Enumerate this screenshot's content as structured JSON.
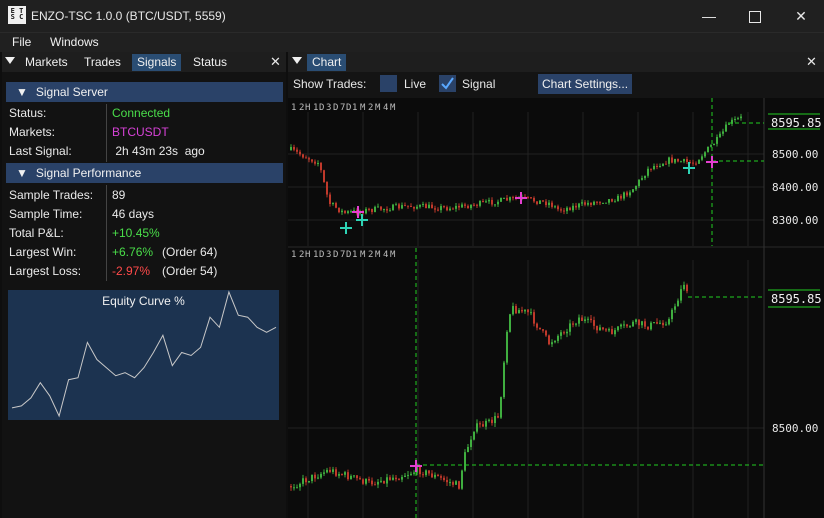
{
  "window": {
    "icon_text": "ETSC",
    "title": "ENZO-TSC 1.0.0 (BTC/USDT, 5559)",
    "minimize": "—",
    "maximize": "☐",
    "close": "✕"
  },
  "menu": [
    "File",
    "Windows"
  ],
  "left_tabs": [
    "Markets",
    "Trades",
    "Signals",
    "Status"
  ],
  "left_active_tab": "Signals",
  "signal_server": {
    "header": "Signal Server",
    "rows": [
      {
        "label": "Status:",
        "value": "Connected",
        "color": "#4ade4a"
      },
      {
        "label": "Markets:",
        "value": "BTCUSDT",
        "color": "#d642d6"
      },
      {
        "label": "Last Signal:",
        "value": " 2h 43m 23s  ago",
        "color": "#eaeaea"
      }
    ]
  },
  "signal_performance": {
    "header": "Signal Performance",
    "rows": [
      {
        "label": "Sample Trades:",
        "value": "89",
        "extra": "",
        "color": "#eaeaea"
      },
      {
        "label": "Sample Time:",
        "value": "46 days",
        "extra": "",
        "color": "#eaeaea"
      },
      {
        "label": "Total P&L:",
        "value": "+10.45%",
        "extra": "",
        "color": "#4ade4a"
      },
      {
        "label": "Largest Win:",
        "value": "+6.76%",
        "extra": "(Order 64)",
        "color": "#4ade4a"
      },
      {
        "label": "Largest Loss:",
        "value": "-2.97%",
        "extra": "(Order 54)",
        "color": "#ff4a4a"
      }
    ]
  },
  "equity_curve": {
    "title": "Equity Curve %",
    "values": [
      2.0,
      2.2,
      3.0,
      4.5,
      3.2,
      1.2,
      4.8,
      5.0,
      8.5,
      6.8,
      6.0,
      5.2,
      5.5,
      5.0,
      6.0,
      7.5,
      9.2,
      6.2,
      7.5,
      7.2,
      8.0,
      11.0,
      10.0,
      13.5,
      11.2,
      11.0,
      10.0,
      9.5,
      10.0
    ]
  },
  "chart_tab": {
    "label": "Chart"
  },
  "chart_toolbar": {
    "show_trades_label": "Show Trades:",
    "live_label": "Live",
    "live_checked": false,
    "signal_label": "Signal",
    "signal_checked": true,
    "settings_button": "Chart Settings..."
  },
  "timeframes": [
    "1",
    "2",
    "H",
    "1",
    "D",
    "3",
    "D",
    "7",
    "D",
    "1",
    "M",
    "2",
    "M",
    "4",
    "M"
  ],
  "timeframes_bottom": [
    "1",
    "2",
    "H",
    "1",
    "D",
    "3",
    "D",
    "7",
    "D",
    "1",
    "M",
    "2",
    "M",
    "4",
    "M"
  ],
  "top_chart": {
    "current_price": "8595.85",
    "price_labels": [
      "8500.00",
      "8400.00",
      "8300.00"
    ]
  },
  "bottom_chart": {
    "current_price": "8595.85",
    "price_labels": [
      "8500.00"
    ]
  },
  "colors": {
    "accent": "#2a4268",
    "up": "#3fae3f",
    "down": "#c0392b",
    "grid": "#222222",
    "guide": "#22cc22",
    "trade_buy": "#2ed3b5",
    "trade_sell": "#e43fd0"
  }
}
